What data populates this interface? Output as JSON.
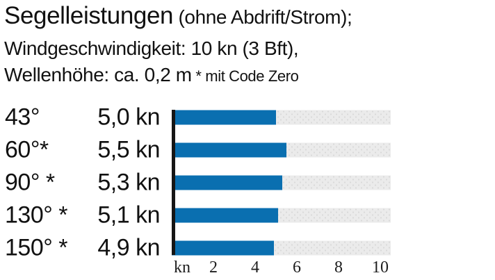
{
  "header": {
    "title": "Segelleistungen",
    "title_suffix": " (ohne Abdrift/Strom);",
    "line2": "Windgeschwindigkeit: 10 kn (3 Bft),",
    "line3": "Wellenhöhe: ca. 0,2 m",
    "line3_note": " * mit Code Zero"
  },
  "chart_data": {
    "type": "bar",
    "orientation": "horizontal",
    "title": "Segelleistungen (ohne Abdrift/Strom); Windgeschwindigkeit: 10 kn (3 Bft), Wellenhöhe: ca. 0,2 m (* mit Code Zero)",
    "categories": [
      "43°",
      "60°*",
      "90° *",
      "130° *",
      "150° *"
    ],
    "values": [
      5.0,
      5.5,
      5.3,
      5.1,
      4.9
    ],
    "value_labels": [
      "5,0 kn",
      "5,5 kn",
      "5,3 kn",
      "5,1 kn",
      "4,9 kn"
    ],
    "unit": "kn",
    "axis": {
      "label": "kn",
      "ticks": [
        2,
        4,
        6,
        8,
        10
      ],
      "xlim": [
        0,
        10.5
      ]
    },
    "grid": false,
    "legend": "none",
    "bar_color": "#0a6fb0",
    "track_color": "#ebebeb",
    "axis_line_color": "#161616"
  }
}
